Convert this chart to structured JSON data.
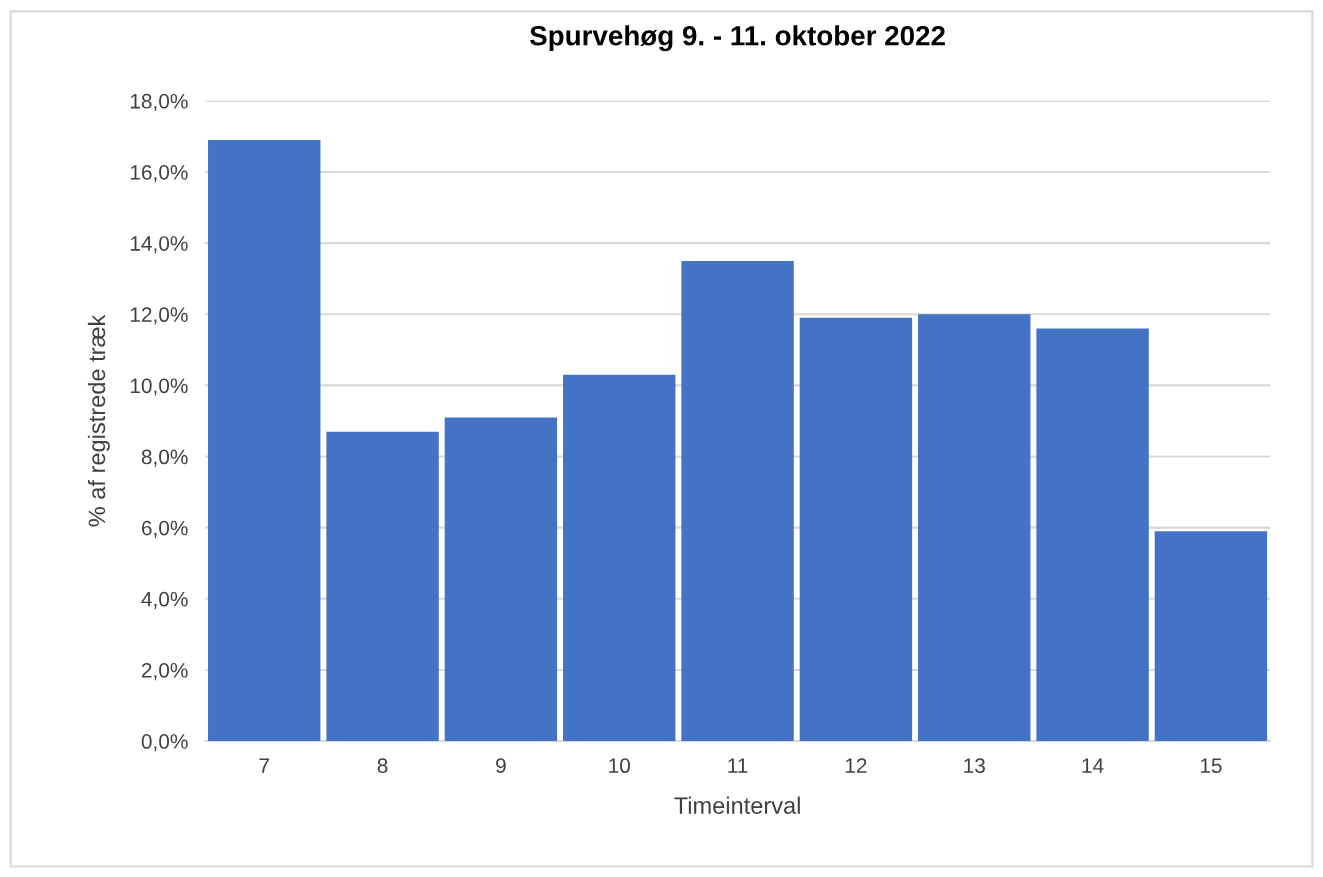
{
  "chart_data": {
    "type": "bar",
    "title": "Spurvehøg 9. - 11. oktober 2022",
    "xlabel": "Timeinterval",
    "ylabel": "% af registrede træk",
    "categories": [
      "7",
      "8",
      "9",
      "10",
      "11",
      "12",
      "13",
      "14",
      "15"
    ],
    "values": [
      16.9,
      8.7,
      9.1,
      10.3,
      13.5,
      11.9,
      12.0,
      11.6,
      5.9
    ],
    "color": "#4472c4",
    "ylim": [
      0,
      18
    ],
    "yticks": [
      {
        "value": 0,
        "label": "0,0%"
      },
      {
        "value": 2,
        "label": "2,0%"
      },
      {
        "value": 4,
        "label": "4,0%"
      },
      {
        "value": 6,
        "label": "6,0%"
      },
      {
        "value": 8,
        "label": "8,0%"
      },
      {
        "value": 10,
        "label": "10,0%"
      },
      {
        "value": 12,
        "label": "12,0%"
      },
      {
        "value": 14,
        "label": "14,0%"
      },
      {
        "value": 16,
        "label": "16,0%"
      },
      {
        "value": 18,
        "label": "18,0%"
      }
    ],
    "grid": "y"
  }
}
